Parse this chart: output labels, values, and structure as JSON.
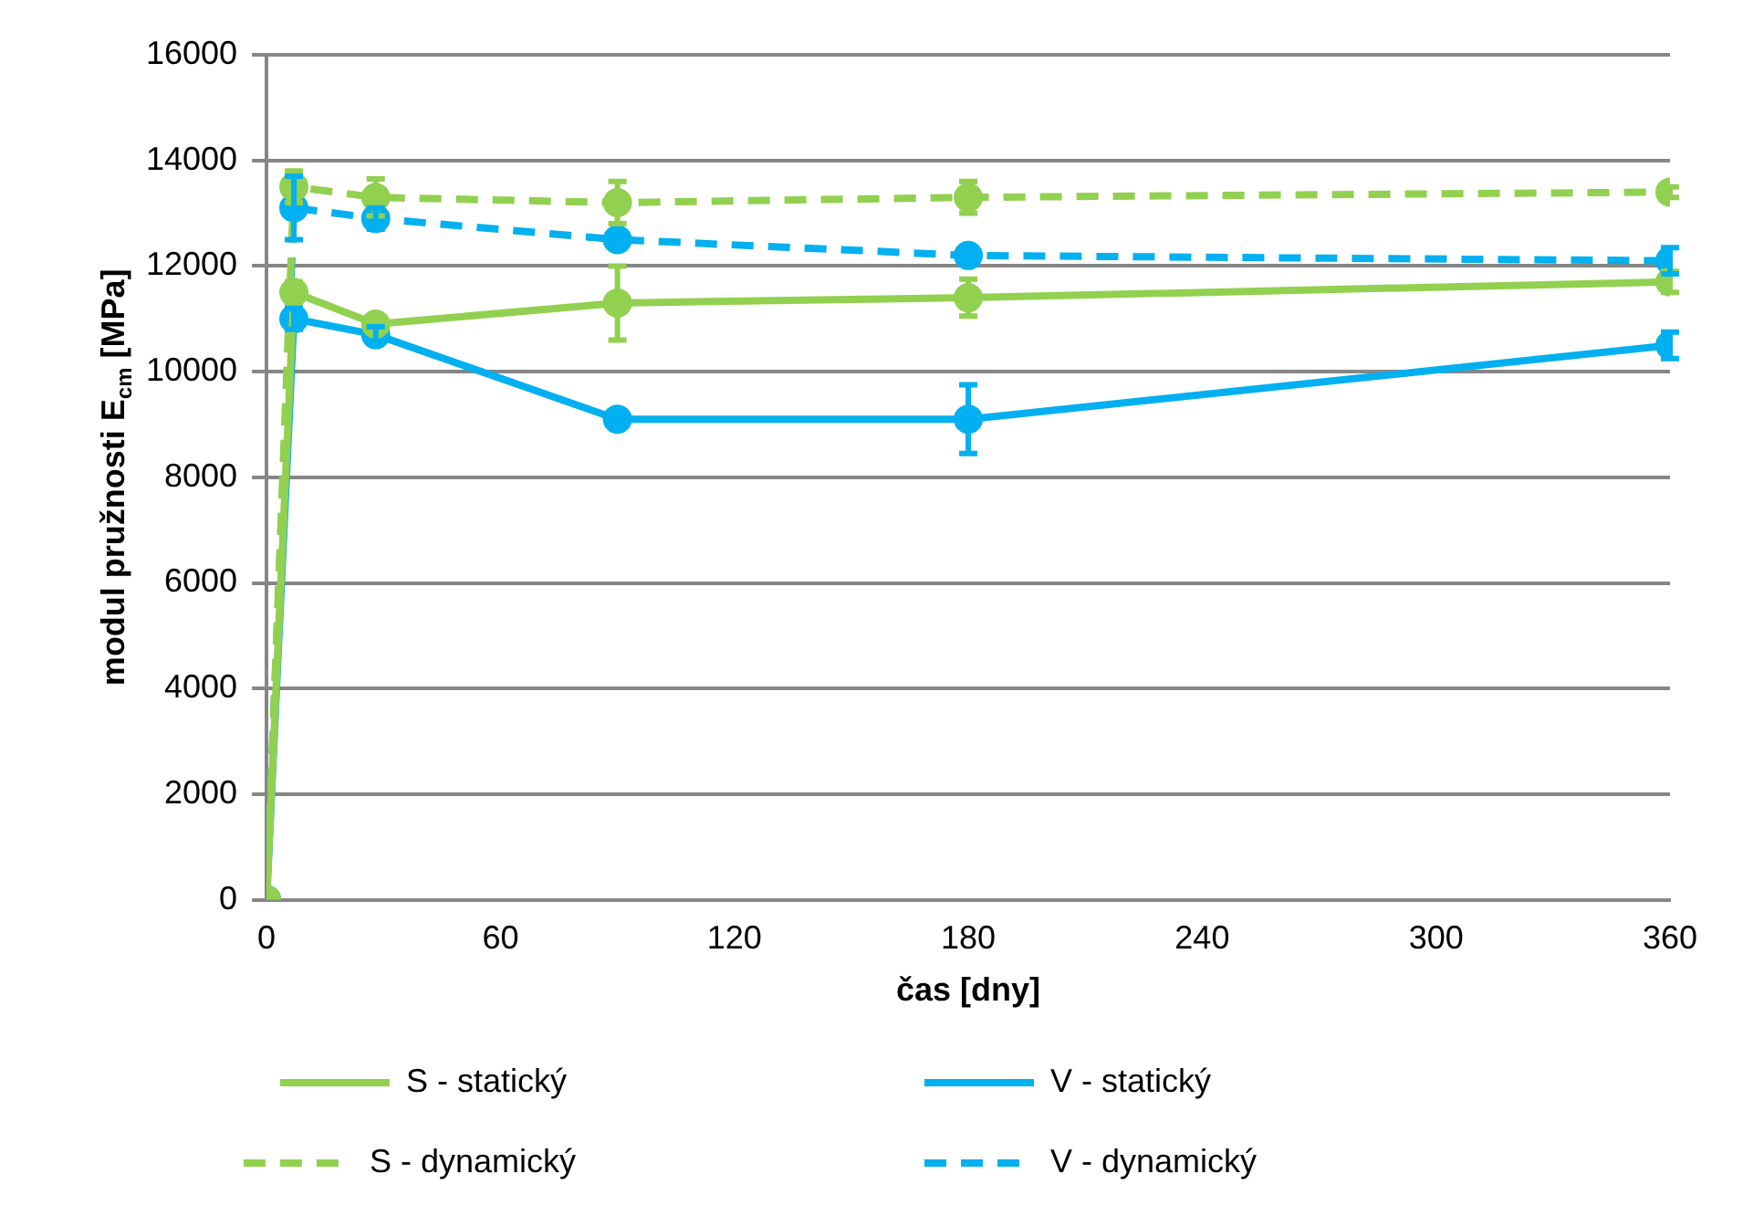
{
  "chart_data": {
    "type": "line",
    "xlabel": "čas [dny]",
    "ylabel": "modul pružnosti E$_{cm}$ [MPa]",
    "x": [
      0,
      7,
      28,
      90,
      180,
      360
    ],
    "xlim": [
      0,
      360
    ],
    "xticks": [
      0,
      60,
      120,
      180,
      240,
      300,
      360
    ],
    "ylim": [
      0,
      16000
    ],
    "yticks": [
      0,
      2000,
      4000,
      6000,
      8000,
      10000,
      12000,
      14000,
      16000
    ],
    "grid": "y",
    "legend": "bottom",
    "marker": "circle",
    "series": [
      {
        "name": "S - statický",
        "color": "#92d050",
        "line_style": "solid",
        "values": [
          0,
          11500,
          10900,
          11300,
          11400,
          11700
        ],
        "errors": [
          null,
          200,
          null,
          700,
          350,
          200
        ]
      },
      {
        "name": "V - statický",
        "color": "#00b0f0",
        "line_style": "solid",
        "values": [
          0,
          11000,
          10700,
          9100,
          9100,
          10500
        ],
        "errors": [
          null,
          200,
          150,
          null,
          650,
          250
        ]
      },
      {
        "name": "S - dynamický",
        "color": "#92d050",
        "line_style": "dashed",
        "values": [
          0,
          13500,
          13300,
          13200,
          13300,
          13400
        ],
        "errors": [
          null,
          300,
          350,
          400,
          300,
          100
        ]
      },
      {
        "name": "V - dynamický",
        "color": "#00b0f0",
        "line_style": "dashed",
        "values": [
          0,
          13100,
          12900,
          12500,
          12200,
          12100
        ],
        "errors": [
          null,
          600,
          200,
          150,
          null,
          250
        ]
      }
    ]
  }
}
